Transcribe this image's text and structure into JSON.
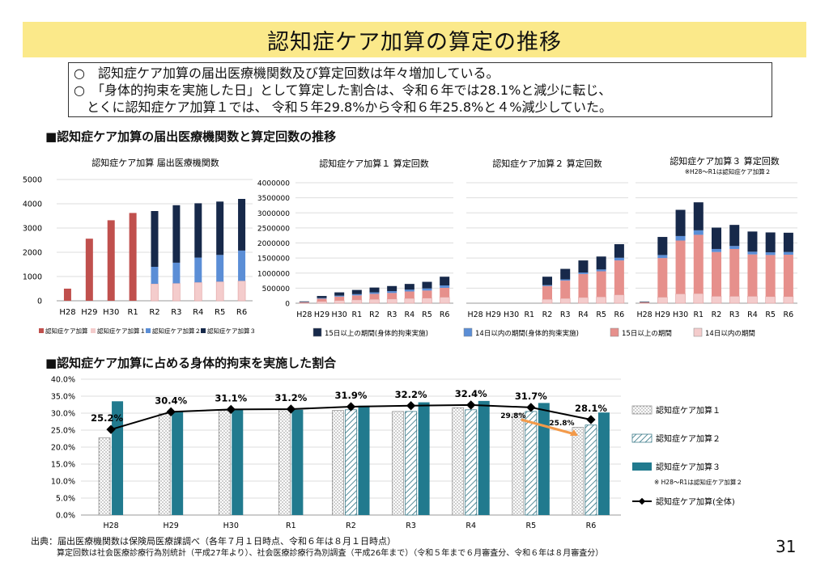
{
  "title": "認知症ケア加算の算定の推移",
  "summary": [
    "○　認知症ケア加算の届出医療機関数及び算定回数は年々増加している。",
    "○　「身体的拘束を実施した日」として算定した割合は、令和６年では28.1%と減少に転じ、",
    "　とくに認知症ケア加算１では、 令和５年29.8%から令和６年25.8%と４%減少していた。"
  ],
  "section1_title": "■認知症ケア加算の届出医療機関数と算定回数の推移",
  "section2_title": "■認知症ケア加算に占める身体的拘束を実施した割合",
  "footer_line1": "出典：届出医療機関数は保険局医療課調べ（各年７月１日時点、令和６年は８月１日時点）",
  "footer_line2": "算定回数は社会医療診療行為別統計（平成27年より）、社会医療診療行為別調査（平成26年まで）（令和５年まで６月審査分、令和６年は８月審査分）",
  "page_number": "31",
  "colors": {
    "kasan": "#c0504d",
    "kasan1": "#f4cccc",
    "kasan2": "#5b8ed6",
    "kasan3": "#17294a",
    "light_red": "#e6908c",
    "teal": "#217a8e",
    "total_line": "#000000",
    "arrow": "#f39a4a",
    "banner": "#fbe98a"
  },
  "chart_data": [
    {
      "type": "bar",
      "stacked": true,
      "title": "認知症ケア加算 届出医療機関数",
      "categories": [
        "H28",
        "H29",
        "H30",
        "R1",
        "R2",
        "R3",
        "R4",
        "R5",
        "R6"
      ],
      "ylim": [
        0,
        5000
      ],
      "yticks": [
        "0",
        "1000",
        "2000",
        "3000",
        "4000",
        "5000"
      ],
      "series": [
        {
          "name": "認知症ケア加算",
          "values": [
            500,
            2560,
            3320,
            3620,
            0,
            0,
            0,
            0,
            0
          ]
        },
        {
          "name": "認知症ケア加算１",
          "values": [
            0,
            0,
            0,
            0,
            700,
            720,
            760,
            790,
            820
          ]
        },
        {
          "name": "認知症ケア加算２",
          "values": [
            0,
            0,
            0,
            0,
            700,
            850,
            1020,
            1100,
            1250
          ]
        },
        {
          "name": "認知症ケア加算３",
          "values": [
            0,
            0,
            0,
            0,
            2300,
            2370,
            2240,
            2200,
            2130
          ]
        }
      ]
    },
    {
      "type": "bar",
      "stacked": true,
      "title": "認知症ケア加算１ 算定回数",
      "categories": [
        "H28",
        "H29",
        "H30",
        "R1",
        "R2",
        "R3",
        "R4",
        "R5",
        "R6"
      ],
      "ylim": [
        0,
        4000000
      ],
      "yticks": [
        "0",
        "500000",
        "1000000",
        "1500000",
        "2000000",
        "2500000",
        "3000000",
        "3500000",
        "4000000"
      ],
      "series": [
        {
          "name": "14日以内の期間",
          "values": [
            15000,
            60000,
            90000,
            110000,
            130000,
            140000,
            160000,
            170000,
            200000
          ]
        },
        {
          "name": "15日以上の期間",
          "values": [
            20000,
            90000,
            130000,
            150000,
            180000,
            200000,
            230000,
            250000,
            310000
          ]
        },
        {
          "name": "14日以内の期間(身体的拘束実施)",
          "values": [
            5000,
            20000,
            30000,
            40000,
            50000,
            60000,
            60000,
            70000,
            80000
          ]
        },
        {
          "name": "15日以上の期間(身体的拘束実施)",
          "values": [
            20000,
            70000,
            110000,
            140000,
            160000,
            170000,
            190000,
            220000,
            290000
          ]
        }
      ]
    },
    {
      "type": "bar",
      "stacked": true,
      "title": "認知症ケア加算２ 算定回数",
      "categories": [
        "H28",
        "H29",
        "H30",
        "R1",
        "R2",
        "R3",
        "R4",
        "R5",
        "R6"
      ],
      "ylim": [
        0,
        4000000
      ],
      "series": [
        {
          "name": "14日以内の期間",
          "values": [
            0,
            0,
            0,
            0,
            130000,
            160000,
            190000,
            210000,
            280000
          ]
        },
        {
          "name": "15日以上の期間",
          "values": [
            0,
            0,
            0,
            0,
            440000,
            590000,
            780000,
            850000,
            1140000
          ]
        },
        {
          "name": "14日以内の期間(身体的拘束実施)",
          "values": [
            0,
            0,
            0,
            0,
            30000,
            40000,
            50000,
            60000,
            90000
          ]
        },
        {
          "name": "15日以上の期間(身体的拘束実施)",
          "values": [
            0,
            0,
            0,
            0,
            280000,
            350000,
            400000,
            430000,
            450000
          ]
        }
      ]
    },
    {
      "type": "bar",
      "stacked": true,
      "title": "認知症ケア加算３ 算定回数",
      "subtitle": "※H28～R1は認知症ケア加算２",
      "categories": [
        "H28",
        "H29",
        "H30",
        "R1",
        "R2",
        "R3",
        "R4",
        "R5",
        "R6"
      ],
      "ylim": [
        0,
        4000000
      ],
      "series": [
        {
          "name": "14日以内の期間",
          "values": [
            10000,
            200000,
            310000,
            320000,
            230000,
            230000,
            230000,
            220000,
            220000
          ]
        },
        {
          "name": "15日以上の期間",
          "values": [
            20000,
            1300000,
            1770000,
            1950000,
            1470000,
            1570000,
            1390000,
            1380000,
            1390000
          ]
        },
        {
          "name": "14日以内の期間(身体的拘束実施)",
          "values": [
            0,
            100000,
            150000,
            150000,
            100000,
            100000,
            90000,
            90000,
            90000
          ]
        },
        {
          "name": "15日以上の期間(身体的拘束実施)",
          "values": [
            20000,
            600000,
            870000,
            930000,
            710000,
            700000,
            670000,
            660000,
            640000
          ]
        }
      ]
    },
    {
      "type": "bar",
      "title": "",
      "categories": [
        "H28",
        "H29",
        "H30",
        "R1",
        "R2",
        "R3",
        "R4",
        "R5",
        "R6"
      ],
      "ylim": [
        0,
        40
      ],
      "yticks": [
        "0.0%",
        "5.0%",
        "10.0%",
        "15.0%",
        "20.0%",
        "25.0%",
        "30.0%",
        "35.0%",
        "40.0%"
      ],
      "series": [
        {
          "name": "認知症ケア加算１",
          "values": [
            22.8,
            29.8,
            30.8,
            31.0,
            30.8,
            30.5,
            31.6,
            29.8,
            25.8
          ]
        },
        {
          "name": "認知症ケア加算２",
          "values": [
            null,
            null,
            null,
            null,
            31.0,
            30.5,
            31.0,
            30.5,
            26.5
          ]
        },
        {
          "name": "認知症ケア加算３",
          "values": [
            33.5,
            30.5,
            31.0,
            31.0,
            32.2,
            33.2,
            33.6,
            33.0,
            30.2
          ]
        },
        {
          "name": "認知症ケア加算(全体)",
          "type": "line",
          "values": [
            25.2,
            30.4,
            31.1,
            31.2,
            31.9,
            32.2,
            32.4,
            31.7,
            28.1
          ]
        }
      ],
      "line_labels": [
        "25.2%",
        "30.4%",
        "31.1%",
        "31.2%",
        "31.9%",
        "32.2%",
        "32.4%",
        "31.7%",
        "28.1%"
      ],
      "annotations": [
        "29.8%",
        "25.8%"
      ],
      "legend_note": "※ H28～R1は認知症ケア加算２"
    }
  ]
}
